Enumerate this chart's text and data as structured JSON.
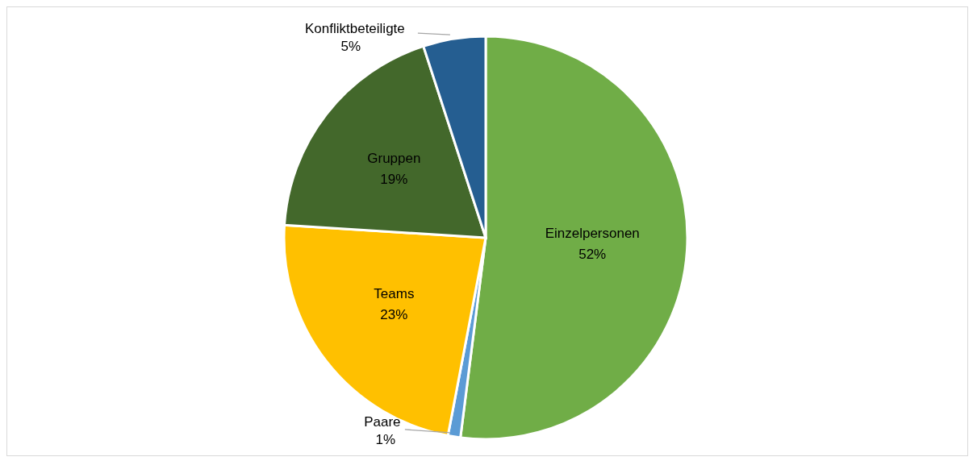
{
  "chart_data": {
    "type": "pie",
    "categories": [
      "Einzelpersonen",
      "Paare",
      "Teams",
      "Gruppen",
      "Konfliktbeteiligte"
    ],
    "values": [
      52,
      1,
      23,
      19,
      5
    ],
    "value_labels": [
      "52%",
      "1%",
      "23%",
      "19%",
      "5%"
    ],
    "colors": [
      "#70ad47",
      "#5b9bd5",
      "#ffc000",
      "#43682b",
      "#255e91"
    ],
    "legend": false
  }
}
